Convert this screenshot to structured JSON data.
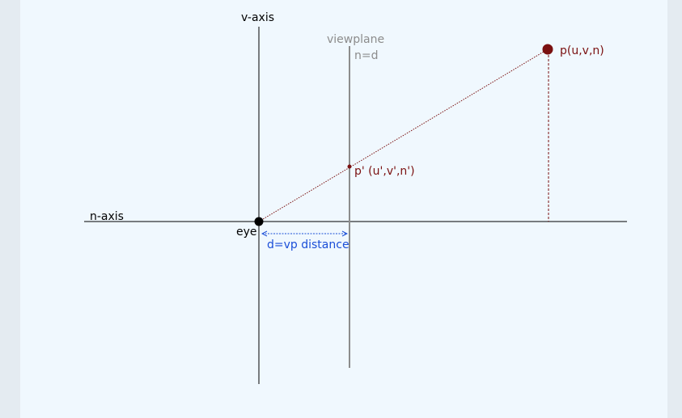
{
  "diagram": {
    "labels": {
      "v_axis": "v-axis",
      "n_axis": "n-axis",
      "viewplane": "viewplane",
      "viewplane_eq": "n=d",
      "eye": "eye",
      "distance": "d=vp distance",
      "point": "p(u,v,n)",
      "projected_point": "p' (u',v',n')"
    },
    "colors": {
      "background": "#f0f8fe",
      "page_border": "#e4ebf1",
      "axis": "#000000",
      "viewplane": "#8c8c8c",
      "point": "#7a1010",
      "distance": "#1a4ed8"
    }
  }
}
